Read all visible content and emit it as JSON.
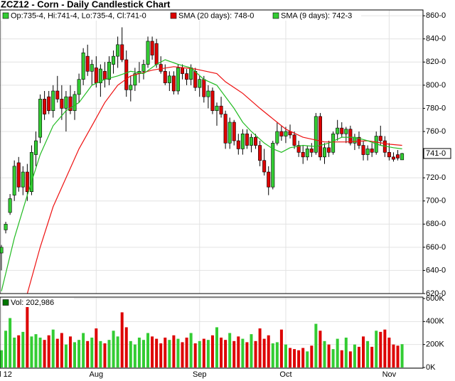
{
  "chart_data": {
    "type": "candlestick",
    "title": "ZCZ12 - Corn - Daily Candlestick Chart",
    "ohlc_label": "Op:735-4, Hi:741-4, Lo:735-4, Cl:741-0",
    "up_color": "#33cc33",
    "down_color": "#dd0000",
    "open": [
      655,
      675,
      690,
      705,
      733,
      712,
      725,
      708,
      740,
      755,
      788,
      790,
      778,
      795,
      788,
      780,
      790,
      778,
      792,
      805,
      825,
      812,
      815,
      802,
      812,
      805,
      818,
      825,
      835,
      822,
      796,
      800,
      810,
      812,
      818,
      838,
      836,
      818,
      812,
      802,
      808,
      795,
      815,
      810,
      805,
      812,
      798,
      805,
      790,
      795,
      778,
      782,
      775,
      750,
      768,
      752,
      745,
      758,
      748,
      755,
      748,
      735,
      725,
      712,
      750,
      760,
      756,
      760,
      757,
      748,
      742,
      738,
      745,
      742,
      773,
      738,
      746,
      742,
      758,
      763,
      758,
      762,
      750,
      755,
      748,
      740,
      745,
      742,
      756,
      752,
      742,
      738,
      740,
      735.5
    ],
    "high": [
      662,
      682,
      706,
      735,
      738,
      730,
      732,
      748,
      760,
      792,
      795,
      795,
      800,
      808,
      800,
      795,
      800,
      795,
      810,
      832,
      835,
      822,
      825,
      818,
      820,
      825,
      830,
      842,
      850,
      830,
      808,
      815,
      820,
      822,
      842,
      842,
      840,
      825,
      818,
      812,
      812,
      818,
      818,
      814,
      818,
      815,
      808,
      808,
      800,
      798,
      785,
      790,
      778,
      772,
      770,
      758,
      762,
      762,
      758,
      758,
      752,
      745,
      730,
      752,
      768,
      765,
      764,
      766,
      760,
      752,
      748,
      748,
      750,
      776,
      776,
      750,
      752,
      760,
      770,
      768,
      764,
      765,
      758,
      760,
      752,
      748,
      750,
      760,
      765,
      756,
      750,
      742,
      744,
      741.5
    ],
    "low": [
      640,
      672,
      688,
      700,
      708,
      705,
      700,
      705,
      730,
      750,
      770,
      775,
      772,
      785,
      770,
      760,
      775,
      770,
      785,
      800,
      808,
      800,
      798,
      790,
      798,
      800,
      810,
      815,
      820,
      790,
      786,
      795,
      802,
      805,
      815,
      822,
      815,
      810,
      800,
      795,
      792,
      792,
      805,
      800,
      800,
      795,
      790,
      785,
      780,
      775,
      765,
      772,
      745,
      745,
      748,
      740,
      740,
      745,
      742,
      745,
      730,
      722,
      705,
      710,
      748,
      752,
      750,
      754,
      745,
      738,
      732,
      735,
      738,
      740,
      735,
      732,
      738,
      740,
      752,
      755,
      750,
      748,
      744,
      745,
      735,
      735,
      738,
      740,
      748,
      738,
      735,
      734,
      735,
      735.5
    ],
    "close": [
      660,
      680,
      702,
      730,
      712,
      725,
      708,
      742,
      752,
      788,
      775,
      778,
      795,
      788,
      780,
      790,
      778,
      792,
      805,
      828,
      812,
      818,
      802,
      814,
      805,
      820,
      825,
      835,
      822,
      796,
      800,
      810,
      812,
      818,
      838,
      826,
      818,
      812,
      802,
      808,
      795,
      815,
      810,
      805,
      815,
      798,
      805,
      790,
      795,
      778,
      782,
      775,
      750,
      768,
      752,
      745,
      758,
      748,
      755,
      748,
      735,
      725,
      712,
      750,
      760,
      756,
      760,
      757,
      748,
      742,
      738,
      745,
      742,
      773,
      738,
      746,
      742,
      758,
      763,
      758,
      762,
      750,
      755,
      748,
      740,
      745,
      742,
      756,
      752,
      742,
      738,
      736,
      737,
      741
    ],
    "ylim": [
      620,
      865
    ],
    "yticks": [
      {
        "value": 620,
        "label": "620-0"
      },
      {
        "value": 640,
        "label": "640-0"
      },
      {
        "value": 660,
        "label": "660-0"
      },
      {
        "value": 680,
        "label": "680-0"
      },
      {
        "value": 700,
        "label": "700-0"
      },
      {
        "value": 720,
        "label": "720-0"
      },
      {
        "value": 760,
        "label": "760-0"
      },
      {
        "value": 780,
        "label": "780-0"
      },
      {
        "value": 800,
        "label": "800-0"
      },
      {
        "value": 820,
        "label": "820-0"
      },
      {
        "value": 840,
        "label": "840-0"
      },
      {
        "value": 860,
        "label": "860-0"
      }
    ],
    "last_price": {
      "value": 741,
      "label": "741-0"
    },
    "xticks": [
      {
        "value": 0,
        "label": "l 12"
      },
      {
        "value": 22,
        "label": "Aug"
      },
      {
        "value": 46,
        "label": "Sep"
      },
      {
        "value": 66,
        "label": "Oct"
      },
      {
        "value": 90,
        "label": "Nov"
      }
    ],
    "series": [
      {
        "name": "SMA (20 days): 748-0",
        "color": "#ee1111",
        "x": [
          6,
          9,
          12,
          15,
          18,
          21,
          24,
          27,
          30,
          35,
          40,
          45,
          50,
          52,
          56,
          60,
          64,
          66,
          70,
          75,
          80,
          85,
          90,
          93
        ],
        "values": [
          620,
          660,
          695,
          720,
          745,
          765,
          785,
          800,
          808,
          813,
          816,
          814,
          810,
          803,
          793,
          780,
          768,
          762,
          755,
          751,
          751,
          752,
          749,
          748
        ]
      },
      {
        "name": "SMA (9 days): 742-3",
        "color": "#22bb22",
        "x": [
          0,
          3,
          6,
          9,
          12,
          15,
          18,
          21,
          24,
          27,
          30,
          33,
          36,
          38,
          41,
          44,
          47,
          50,
          52,
          54,
          56,
          58,
          61,
          63,
          65,
          67,
          70,
          73,
          76,
          79,
          82,
          85,
          88,
          91,
          93
        ],
        "values": [
          622,
          668,
          705,
          740,
          765,
          778,
          785,
          800,
          805,
          808,
          812,
          810,
          818,
          822,
          818,
          815,
          805,
          800,
          790,
          780,
          768,
          760,
          750,
          745,
          742,
          746,
          748,
          747,
          750,
          755,
          755,
          752,
          748,
          746,
          745
        ]
      }
    ],
    "volume_label": "Vol: 202,986",
    "volume": [
      150000,
      320000,
      430000,
      260000,
      280000,
      310000,
      600000,
      270000,
      290000,
      260000,
      240000,
      280000,
      330000,
      250000,
      300000,
      200000,
      270000,
      220000,
      240000,
      300000,
      230000,
      260000,
      340000,
      230000,
      210000,
      240000,
      320000,
      270000,
      480000,
      350000,
      230000,
      200000,
      260000,
      240000,
      300000,
      270000,
      250000,
      210000,
      260000,
      240000,
      280000,
      250000,
      220000,
      260000,
      300000,
      210000,
      230000,
      250000,
      240000,
      280000,
      350000,
      260000,
      240000,
      300000,
      230000,
      270000,
      250000,
      220000,
      290000,
      230000,
      340000,
      250000,
      280000,
      210000,
      220000,
      330000,
      200000,
      170000,
      160000,
      150000,
      170000,
      140000,
      190000,
      380000,
      320000,
      230000,
      200000,
      160000,
      250000,
      150000,
      260000,
      140000,
      200000,
      180000,
      270000,
      230000,
      180000,
      320000,
      310000,
      330000,
      260000,
      200000,
      190000,
      202986
    ],
    "vlim": [
      0,
      600000
    ],
    "vticks": [
      {
        "value": 0,
        "label": "0K"
      },
      {
        "value": 200000,
        "label": "200K"
      },
      {
        "value": 400000,
        "label": "400K"
      },
      {
        "value": 600000,
        "label": "600K"
      }
    ],
    "grid": true
  }
}
